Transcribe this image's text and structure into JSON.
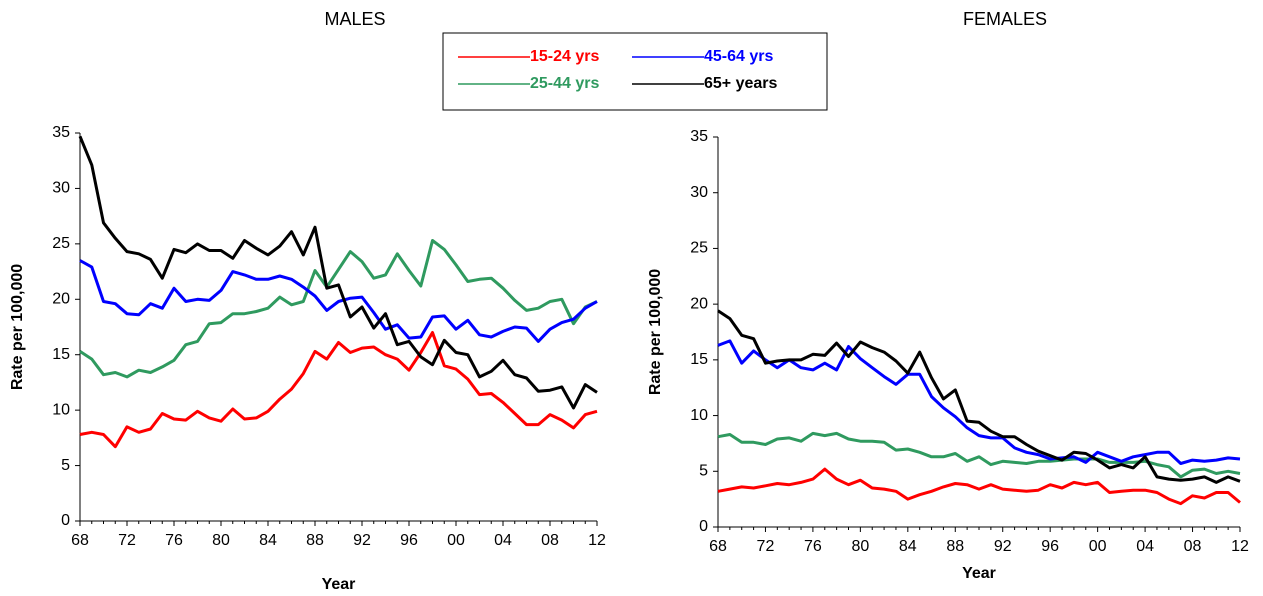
{
  "chart_data": [
    {
      "type": "line",
      "title": "MALES",
      "x_label": "Year",
      "y_label": "Rate per 100,000",
      "categories": [
        "68",
        null,
        null,
        null,
        "72",
        null,
        null,
        null,
        "76",
        null,
        null,
        null,
        "80",
        null,
        null,
        null,
        "84",
        null,
        null,
        null,
        "88",
        null,
        null,
        null,
        "92",
        null,
        null,
        null,
        "96",
        null,
        null,
        null,
        "00",
        null,
        null,
        null,
        "04",
        null,
        null,
        null,
        "08",
        null,
        null,
        null,
        "12"
      ],
      "ylim": [
        0,
        35
      ],
      "yticks": [
        0,
        5,
        10,
        15,
        20,
        25,
        30,
        35
      ],
      "series": [
        {
          "name": "15-24 yrs",
          "color": "#ff0000",
          "values": [
            7.8,
            8.0,
            7.8,
            6.7,
            8.5,
            8.0,
            8.3,
            9.7,
            9.2,
            9.1,
            9.9,
            9.3,
            9.0,
            10.1,
            9.2,
            9.3,
            9.9,
            11.0,
            11.9,
            13.3,
            15.3,
            14.6,
            16.1,
            15.2,
            15.6,
            15.7,
            15.0,
            14.6,
            13.6,
            15.2,
            17.0,
            14.0,
            13.7,
            12.8,
            11.4,
            11.5,
            10.7,
            9.7,
            8.7,
            8.7,
            9.6,
            9.1,
            8.4,
            9.6,
            9.9
          ]
        },
        {
          "name": "25-44 yrs",
          "color": "#2f9a5f",
          "values": [
            15.3,
            14.6,
            13.2,
            13.4,
            13.0,
            13.6,
            13.4,
            13.9,
            14.5,
            15.9,
            16.2,
            17.8,
            17.9,
            18.7,
            18.7,
            18.9,
            19.2,
            20.2,
            19.5,
            19.8,
            22.6,
            21.1,
            22.7,
            24.3,
            23.4,
            21.9,
            22.2,
            24.1,
            22.6,
            21.2,
            25.3,
            24.5,
            23.1,
            21.6,
            21.8,
            21.9,
            21.0,
            19.9,
            19.0,
            19.2,
            19.8,
            20.0,
            17.8,
            19.3,
            19.8
          ]
        },
        {
          "name": "45-64 yrs",
          "color": "#0000ff",
          "values": [
            23.5,
            22.9,
            19.8,
            19.6,
            18.7,
            18.6,
            19.6,
            19.2,
            21.0,
            19.8,
            20.0,
            19.9,
            20.8,
            22.5,
            22.2,
            21.8,
            21.8,
            22.1,
            21.8,
            21.1,
            20.3,
            19.0,
            19.8,
            20.1,
            20.2,
            18.8,
            17.3,
            17.7,
            16.5,
            16.6,
            18.4,
            18.5,
            17.3,
            18.1,
            16.8,
            16.6,
            17.1,
            17.5,
            17.4,
            16.2,
            17.3,
            17.9,
            18.2,
            19.2,
            19.8
          ]
        },
        {
          "name": "65+ years",
          "color": "#000000",
          "values": [
            34.7,
            32.1,
            26.9,
            25.5,
            24.3,
            24.1,
            23.6,
            21.9,
            24.5,
            24.2,
            25.0,
            24.4,
            24.4,
            23.7,
            25.3,
            24.6,
            24.0,
            24.8,
            26.1,
            24.0,
            26.5,
            21.0,
            21.3,
            18.4,
            19.3,
            17.4,
            18.7,
            15.9,
            16.2,
            14.8,
            14.1,
            16.3,
            15.2,
            15.0,
            13.0,
            13.5,
            14.5,
            13.2,
            12.9,
            11.7,
            11.8,
            12.1,
            10.2,
            12.3,
            11.6
          ]
        }
      ]
    },
    {
      "type": "line",
      "title": "FEMALES",
      "x_label": "Year",
      "y_label": "Rate per 100,000",
      "categories": [
        "68",
        null,
        null,
        null,
        "72",
        null,
        null,
        null,
        "76",
        null,
        null,
        null,
        "80",
        null,
        null,
        null,
        "84",
        null,
        null,
        null,
        "88",
        null,
        null,
        null,
        "92",
        null,
        null,
        null,
        "96",
        null,
        null,
        null,
        "00",
        null,
        null,
        null,
        "04",
        null,
        null,
        null,
        "08",
        null,
        null,
        null,
        "12"
      ],
      "ylim": [
        0,
        35
      ],
      "yticks": [
        0,
        5,
        10,
        15,
        20,
        25,
        30,
        35
      ],
      "series": [
        {
          "color": "#ff0000",
          "values": [
            3.2,
            3.4,
            3.6,
            3.5,
            3.7,
            3.9,
            3.8,
            4.0,
            4.3,
            5.2,
            4.3,
            3.8,
            4.2,
            3.5,
            3.4,
            3.2,
            2.5,
            2.9,
            3.2,
            3.6,
            3.9,
            3.8,
            3.4,
            3.8,
            3.4,
            3.3,
            3.2,
            3.3,
            3.8,
            3.5,
            4.0,
            3.8,
            4.0,
            3.1,
            3.2,
            3.3,
            3.3,
            3.1,
            2.5,
            2.1,
            2.8,
            2.6,
            3.1,
            3.1,
            2.2
          ]
        },
        {
          "color": "#2f9a5f",
          "values": [
            8.1,
            8.3,
            7.6,
            7.6,
            7.4,
            7.9,
            8.0,
            7.7,
            8.4,
            8.2,
            8.4,
            7.9,
            7.7,
            7.7,
            7.6,
            6.9,
            7.0,
            6.7,
            6.3,
            6.3,
            6.6,
            5.9,
            6.3,
            5.6,
            5.9,
            5.8,
            5.7,
            5.9,
            5.9,
            6.0,
            6.1,
            6.1,
            6.1,
            5.8,
            5.8,
            5.8,
            5.9,
            5.6,
            5.4,
            4.5,
            5.1,
            5.2,
            4.8,
            5.0,
            4.8
          ]
        },
        {
          "color": "#0000ff",
          "values": [
            16.3,
            16.7,
            14.7,
            15.8,
            15.0,
            14.3,
            15.0,
            14.3,
            14.1,
            14.7,
            14.1,
            16.2,
            15.1,
            14.3,
            13.5,
            12.8,
            13.7,
            13.7,
            11.7,
            10.7,
            9.9,
            8.9,
            8.2,
            8.0,
            8.0,
            7.1,
            6.7,
            6.5,
            6.1,
            6.2,
            6.3,
            5.8,
            6.7,
            6.3,
            5.9,
            6.3,
            6.5,
            6.7,
            6.7,
            5.7,
            6.0,
            5.9,
            6.0,
            6.2,
            6.1
          ]
        },
        {
          "color": "#000000",
          "values": [
            19.4,
            18.7,
            17.2,
            16.9,
            14.7,
            14.9,
            15.0,
            15.0,
            15.5,
            15.4,
            16.5,
            15.3,
            16.6,
            16.1,
            15.7,
            14.9,
            13.8,
            15.7,
            13.4,
            11.5,
            12.3,
            9.5,
            9.4,
            8.6,
            8.1,
            8.1,
            7.4,
            6.8,
            6.4,
            6.0,
            6.7,
            6.6,
            6.0,
            5.3,
            5.6,
            5.3,
            6.3,
            4.5,
            4.3,
            4.2,
            4.3,
            4.5,
            4.0,
            4.5,
            4.1
          ]
        }
      ]
    }
  ]
}
